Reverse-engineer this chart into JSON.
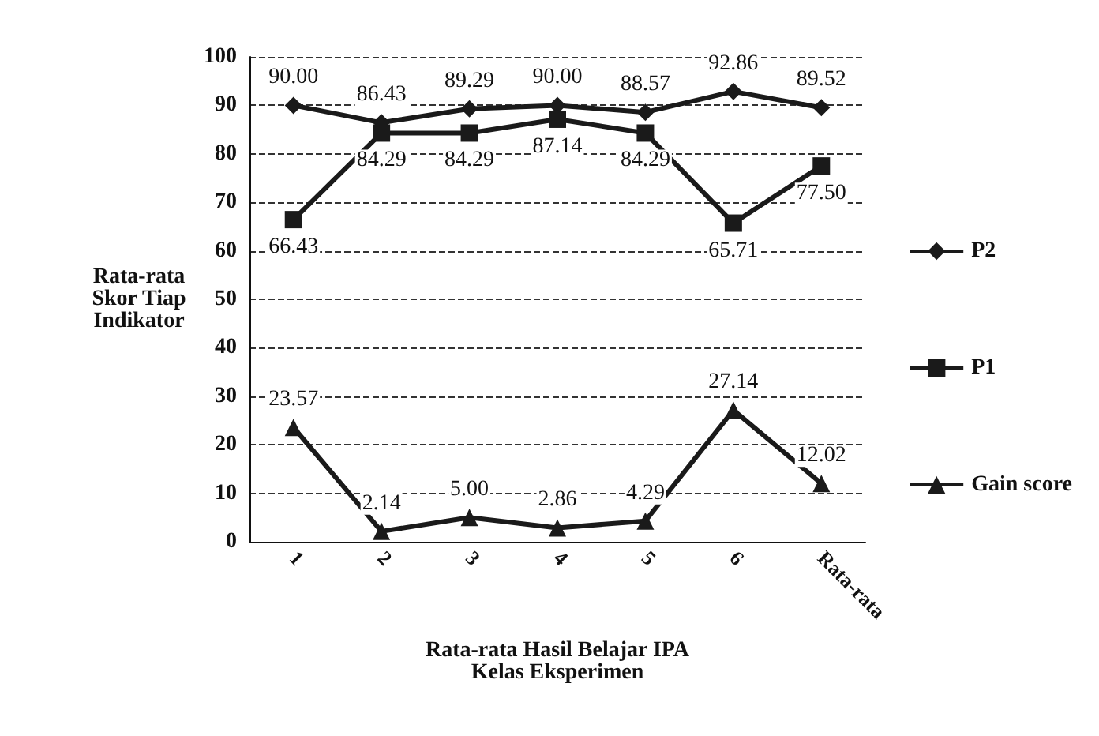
{
  "chart_data": {
    "type": "line",
    "xlabel": "Rata-rata Hasil Belajar IPA\nKelas Eksperimen",
    "ylabel": "Rata-rata\nSkor Tiap\nIndikator",
    "categories": [
      "1",
      "2",
      "3",
      "4",
      "5",
      "6",
      "Rata-rata"
    ],
    "series": [
      {
        "name": "P2",
        "color": "#1a1a1a",
        "marker": "diamond",
        "values": [
          90.0,
          86.43,
          89.29,
          90.0,
          88.57,
          92.86,
          89.52
        ],
        "value_labels": [
          "90.00",
          "86.43",
          "89.29",
          "90.00",
          "88.57",
          "92.86",
          "89.52"
        ]
      },
      {
        "name": "P1",
        "color": "#1a1a1a",
        "marker": "square",
        "values": [
          66.43,
          84.29,
          84.29,
          87.14,
          84.29,
          65.71,
          77.5
        ],
        "value_labels": [
          "66.43",
          "84.29",
          "84.29",
          "87.14",
          "84.29",
          "65.71",
          "77.50"
        ]
      },
      {
        "name": "Gain score",
        "color": "#1a1a1a",
        "marker": "triangle",
        "values": [
          23.57,
          2.14,
          5.0,
          2.86,
          4.29,
          27.14,
          12.02
        ],
        "value_labels": [
          "23.57",
          "2.14",
          "5.00",
          "2.86",
          "4.29",
          "27.14",
          "12.02"
        ]
      }
    ],
    "ylim": [
      0,
      100
    ],
    "yticks": [
      0,
      10,
      20,
      30,
      40,
      50,
      60,
      70,
      80,
      90,
      100
    ],
    "grid": "y",
    "legend": "right"
  }
}
